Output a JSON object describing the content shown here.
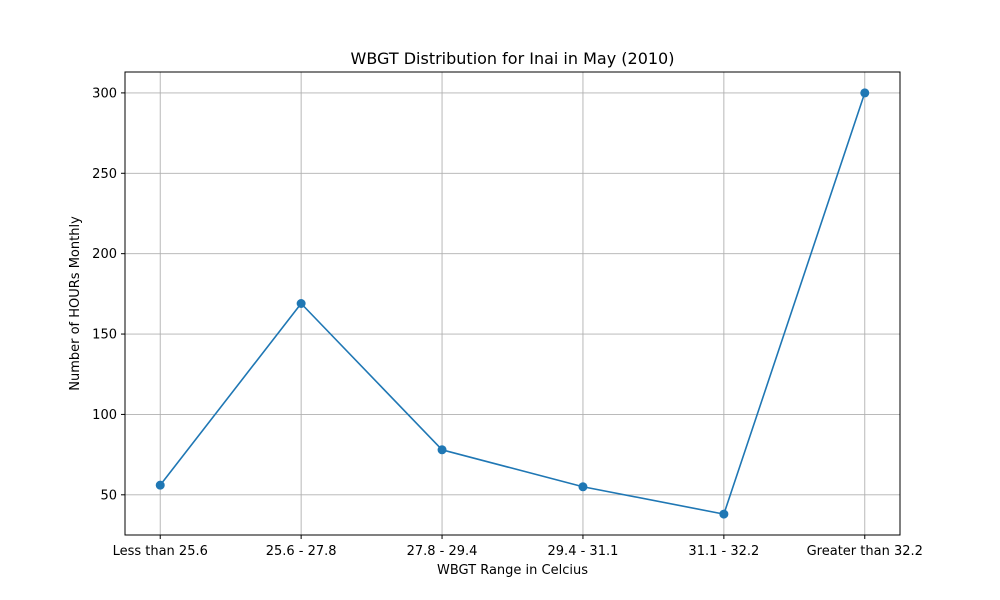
{
  "chart_data": {
    "type": "line",
    "title": "WBGT Distribution for Inai in May (2010)",
    "xlabel": "WBGT Range in Celcius",
    "ylabel": "Number of HOURs Monthly",
    "categories": [
      "Less than 25.6",
      "25.6 - 27.8",
      "27.8 - 29.4",
      "29.4 - 31.1",
      "31.1 - 32.2",
      "Greater than 32.2"
    ],
    "series": [
      {
        "values": [
          56,
          169,
          78,
          55,
          38,
          300
        ],
        "color": "#1f77b4",
        "marker": "circle"
      }
    ],
    "ylim": [
      25,
      313
    ],
    "yticks": [
      50,
      100,
      150,
      200,
      250,
      300
    ],
    "ytick_labels": [
      "50",
      "100",
      "150",
      "200",
      "250",
      "300"
    ],
    "grid": true,
    "legend": "none"
  }
}
